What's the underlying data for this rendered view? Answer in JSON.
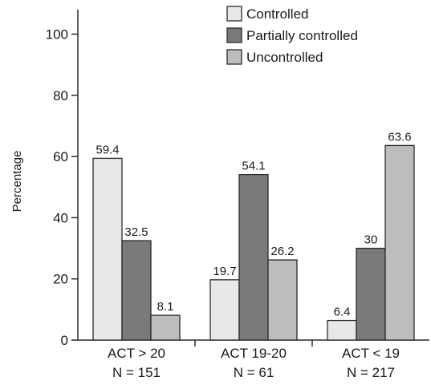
{
  "chart_data": {
    "type": "bar",
    "categories": [
      [
        "ACT > 20",
        "N = 151"
      ],
      [
        "ACT 19-20",
        "N = 61"
      ],
      [
        "ACT < 19",
        "N = 217"
      ]
    ],
    "series": [
      {
        "name": "Controlled",
        "values": [
          59.4,
          19.7,
          6.4
        ]
      },
      {
        "name": "Partially controlled",
        "values": [
          32.5,
          54.1,
          30
        ]
      },
      {
        "name": "Uncontrolled",
        "values": [
          8.1,
          26.2,
          63.6
        ]
      }
    ],
    "data_labels": [
      [
        "59.4",
        "19.7",
        "6.4"
      ],
      [
        "32.5",
        "54.1",
        "30"
      ],
      [
        "8.1",
        "26.2",
        "63.6"
      ]
    ],
    "ylabel": "Percentage",
    "xlabel": "",
    "ylim": [
      0,
      100
    ],
    "yticks": [
      0,
      20,
      40,
      60,
      80,
      100
    ],
    "grid": false,
    "legend_position": "top-right",
    "colors": [
      "#e8e8e8",
      "#7a7a7a",
      "#bdbdbd"
    ],
    "edge_color": "#2b2b2b"
  }
}
